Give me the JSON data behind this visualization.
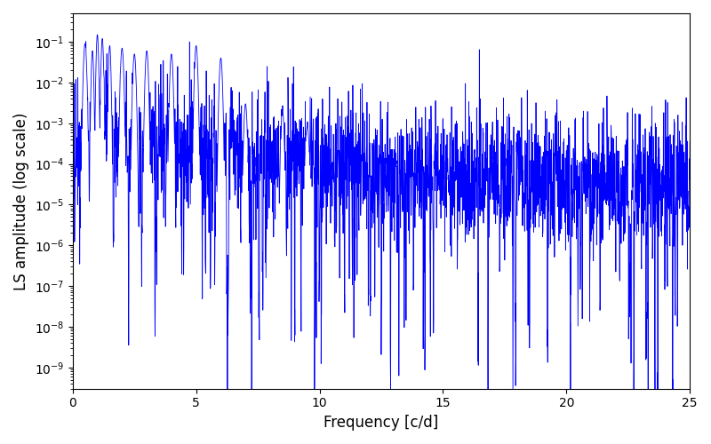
{
  "xlabel": "Frequency [c/d]",
  "ylabel": "LS amplitude (log scale)",
  "xlim": [
    0,
    25
  ],
  "ylim": [
    3e-10,
    0.5
  ],
  "line_color": "#0000FF",
  "linewidth": 0.6,
  "figsize": [
    8.0,
    5.0
  ],
  "dpi": 100,
  "freq_max": 25.0,
  "n_points": 3000,
  "seed": 77
}
